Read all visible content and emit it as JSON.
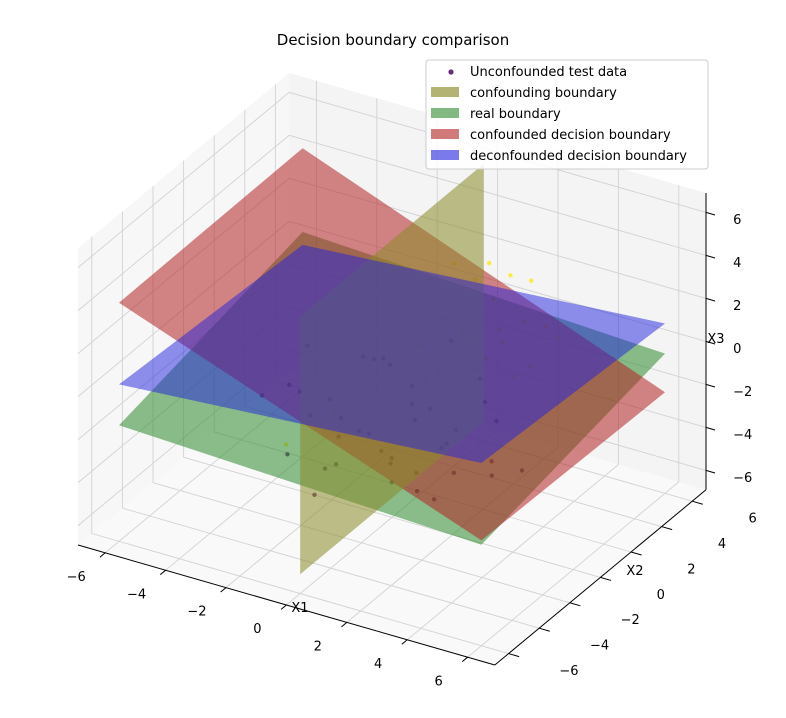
{
  "chart_data": {
    "type": "scatter",
    "title": "Decision boundary comparison",
    "xlabel": "X1",
    "ylabel": "X2",
    "zlabel": "X3",
    "projection": "3d",
    "xlim": [
      -6,
      6
    ],
    "ylim": [
      -6,
      6
    ],
    "zlim": [
      -6,
      6
    ],
    "x_ticks": [
      "−6",
      "−4",
      "−2",
      "0",
      "2",
      "4",
      "6"
    ],
    "y_ticks": [
      "−6",
      "−4",
      "−2",
      "0",
      "2",
      "4",
      "6"
    ],
    "z_ticks": [
      "−6",
      "−4",
      "−2",
      "0",
      "2",
      "4",
      "6"
    ],
    "grid": true,
    "legend_position": "top-right",
    "colors": {
      "class_0": "#440154",
      "class_1": "#fde725",
      "confounding": "#8b8b2a",
      "real": "#2e8b2e",
      "confounded": "#b22222",
      "deconfounded": "#2222dd"
    },
    "series": [
      {
        "name": "Unconfounded test data",
        "kind": "scatter",
        "class_0": [
          [
            -2.1,
            -1.2,
            -2.3
          ],
          [
            -1.4,
            0.6,
            -3.8
          ],
          [
            -0.3,
            -0.9,
            -2.6
          ],
          [
            0.8,
            -1.6,
            -4.0
          ],
          [
            1.7,
            0.2,
            -2.9
          ],
          [
            2.3,
            -0.5,
            -3.6
          ],
          [
            -3.2,
            -0.4,
            -1.8
          ],
          [
            0.1,
            1.3,
            -3.1
          ],
          [
            1.1,
            -2.2,
            -2.4
          ],
          [
            -0.8,
            -2.8,
            -3.3
          ],
          [
            2.9,
            1.1,
            -1.9
          ],
          [
            -2.6,
            1.8,
            -4.4
          ],
          [
            0.5,
            0.3,
            -1.6
          ],
          [
            -1.2,
            -1.7,
            -0.9
          ],
          [
            1.9,
            -1.0,
            -4.7
          ],
          [
            -0.4,
            2.1,
            -2.2
          ],
          [
            3.4,
            -0.2,
            -2.8
          ],
          [
            -3.5,
            0.9,
            -3.0
          ],
          [
            0.9,
            2.4,
            -3.9
          ],
          [
            -1.8,
            -0.1,
            -5.1
          ],
          [
            2.0,
            1.8,
            -0.7
          ],
          [
            -0.2,
            -3.1,
            -1.4
          ],
          [
            1.4,
            -0.3,
            -1.1
          ],
          [
            -2.4,
            -2.1,
            -3.7
          ],
          [
            0.3,
            1.0,
            -5.3
          ],
          [
            2.6,
            -1.9,
            -1.5
          ],
          [
            -1.0,
            0.8,
            -0.4
          ],
          [
            3.0,
            0.6,
            -4.1
          ],
          [
            -0.7,
            -0.5,
            0.6
          ],
          [
            1.2,
            1.5,
            0.9
          ],
          [
            -2.9,
            0.2,
            -0.2
          ],
          [
            2.2,
            -2.7,
            -3.2
          ],
          [
            -1.6,
            2.6,
            -1.7
          ],
          [
            0.6,
            -1.3,
            1.2
          ],
          [
            -0.1,
            0.1,
            -4.5
          ],
          [
            4.1,
            0.4,
            -3.3
          ],
          [
            -4.0,
            -0.6,
            -2.5
          ],
          [
            1.6,
            2.9,
            -2.6
          ],
          [
            -1.3,
            -2.5,
            -4.9
          ],
          [
            0.0,
            -0.7,
            -3.4
          ]
        ],
        "class_1": [
          [
            2.4,
            1.9,
            3.1
          ],
          [
            3.3,
            0.7,
            2.2
          ],
          [
            1.8,
            2.8,
            4.0
          ],
          [
            4.2,
            -0.4,
            1.6
          ],
          [
            2.9,
            -1.1,
            3.6
          ],
          [
            3.8,
            1.6,
            4.7
          ],
          [
            1.5,
            0.4,
            2.7
          ],
          [
            2.1,
            -2.0,
            1.4
          ],
          [
            4.6,
            0.9,
            3.3
          ],
          [
            3.1,
            2.5,
            2.0
          ],
          [
            1.2,
            1.7,
            4.4
          ],
          [
            5.0,
            -0.8,
            2.6
          ],
          [
            2.7,
            0.1,
            5.2
          ],
          [
            3.6,
            -1.7,
            3.9
          ],
          [
            1.9,
            -0.6,
            1.1
          ],
          [
            4.4,
            2.2,
            1.9
          ],
          [
            2.3,
            3.2,
            3.4
          ],
          [
            3.9,
            -2.3,
            2.9
          ],
          [
            -2.6,
            1.4,
            -3.9
          ],
          [
            -3.1,
            -0.8,
            -4.3
          ],
          [
            -1.7,
            2.3,
            -3.5
          ],
          [
            2.5,
            1.2,
            0.8
          ],
          [
            3.4,
            0.3,
            3.0
          ],
          [
            1.6,
            -1.4,
            2.5
          ]
        ]
      },
      {
        "name": "confounding boundary",
        "kind": "plane"
      },
      {
        "name": "real boundary",
        "kind": "plane"
      },
      {
        "name": "confounded decision boundary",
        "kind": "plane"
      },
      {
        "name": "deconfounded decision boundary",
        "kind": "plane"
      }
    ],
    "planes": {
      "confounding": {
        "fixed": "x",
        "value": 0
      },
      "real": {
        "z_at": [
          [
            -6,
            -6,
            -1.5
          ],
          [
            6,
            -6,
            -2.2
          ],
          [
            6,
            6,
            -0.4
          ],
          [
            -6,
            6,
            0.4
          ]
        ]
      },
      "confounded": {
        "z_at": [
          [
            -6,
            -6,
            4.2
          ],
          [
            6,
            -6,
            -2.0
          ],
          [
            6,
            6,
            -2.2
          ],
          [
            -6,
            6,
            4.3
          ]
        ]
      },
      "deconfounded": {
        "z_at": [
          [
            -6,
            -6,
            0.4
          ],
          [
            6,
            -6,
            1.6
          ],
          [
            6,
            6,
            1.0
          ],
          [
            -6,
            6,
            -0.2
          ]
        ]
      }
    }
  }
}
